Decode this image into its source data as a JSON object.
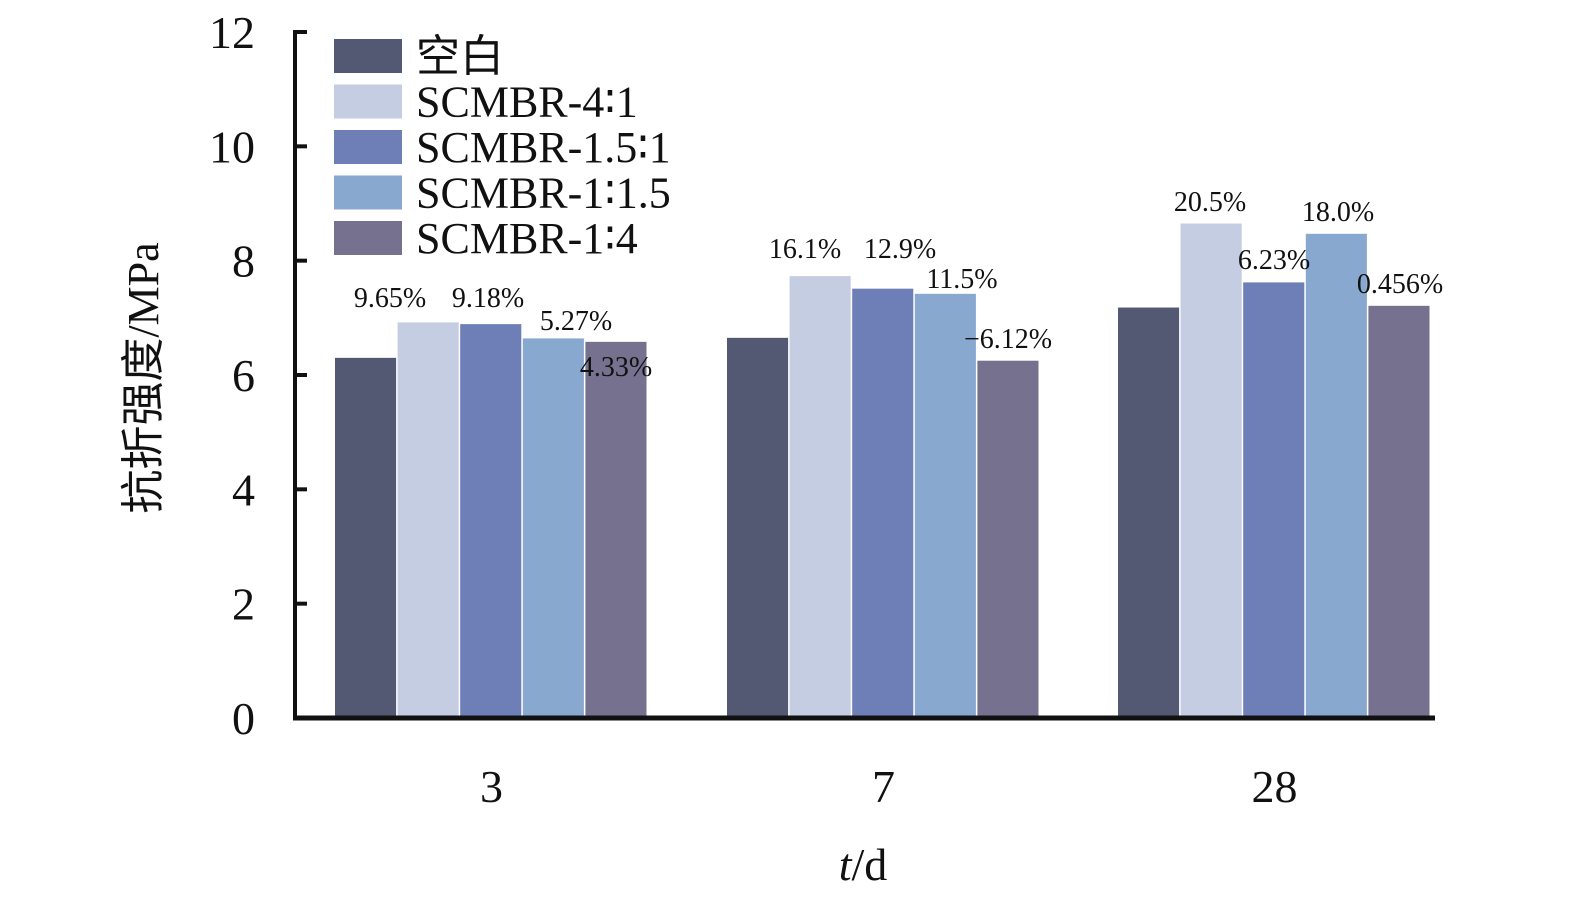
{
  "chart_data": {
    "type": "bar",
    "categories": [
      "3",
      "7",
      "28"
    ],
    "xlabel_italic": "t",
    "xlabel_rest": "/d",
    "ylabel": "抗折强度/MPa",
    "ylim": [
      0,
      12
    ],
    "yticks": [
      "0",
      "2",
      "4",
      "6",
      "8",
      "10",
      "12"
    ],
    "legend_position": "top-left",
    "series": [
      {
        "name": "空白",
        "color": "#535873",
        "values": [
          6.3,
          6.65,
          7.18
        ]
      },
      {
        "name": "SCMBR-4∶1",
        "color": "#c5cde3",
        "values": [
          6.92,
          7.73,
          8.65
        ]
      },
      {
        "name": "SCMBR-1.5∶1",
        "color": "#6e7fb8",
        "values": [
          6.89,
          7.51,
          7.62
        ]
      },
      {
        "name": "SCMBR-1∶1.5",
        "color": "#88a8d0",
        "values": [
          6.64,
          7.42,
          8.47
        ]
      },
      {
        "name": "SCMBR-1∶4",
        "color": "#76718f",
        "values": [
          6.58,
          6.25,
          7.21
        ]
      }
    ],
    "annotations": [
      {
        "series": 1,
        "category": 0,
        "text": "9.65%"
      },
      {
        "series": 2,
        "category": 0,
        "text": "9.18%"
      },
      {
        "series": 3,
        "category": 0,
        "text": "5.27%"
      },
      {
        "series": 4,
        "category": 0,
        "text": "4.33%"
      },
      {
        "series": 1,
        "category": 1,
        "text": "16.1%"
      },
      {
        "series": 2,
        "category": 1,
        "text": "12.9%"
      },
      {
        "series": 3,
        "category": 1,
        "text": "11.5%"
      },
      {
        "series": 4,
        "category": 1,
        "text": "−6.12%"
      },
      {
        "series": 1,
        "category": 2,
        "text": "20.5%"
      },
      {
        "series": 2,
        "category": 2,
        "text": "6.23%"
      },
      {
        "series": 3,
        "category": 2,
        "text": "18.0%"
      },
      {
        "series": 4,
        "category": 2,
        "text": "0.456%"
      }
    ]
  }
}
